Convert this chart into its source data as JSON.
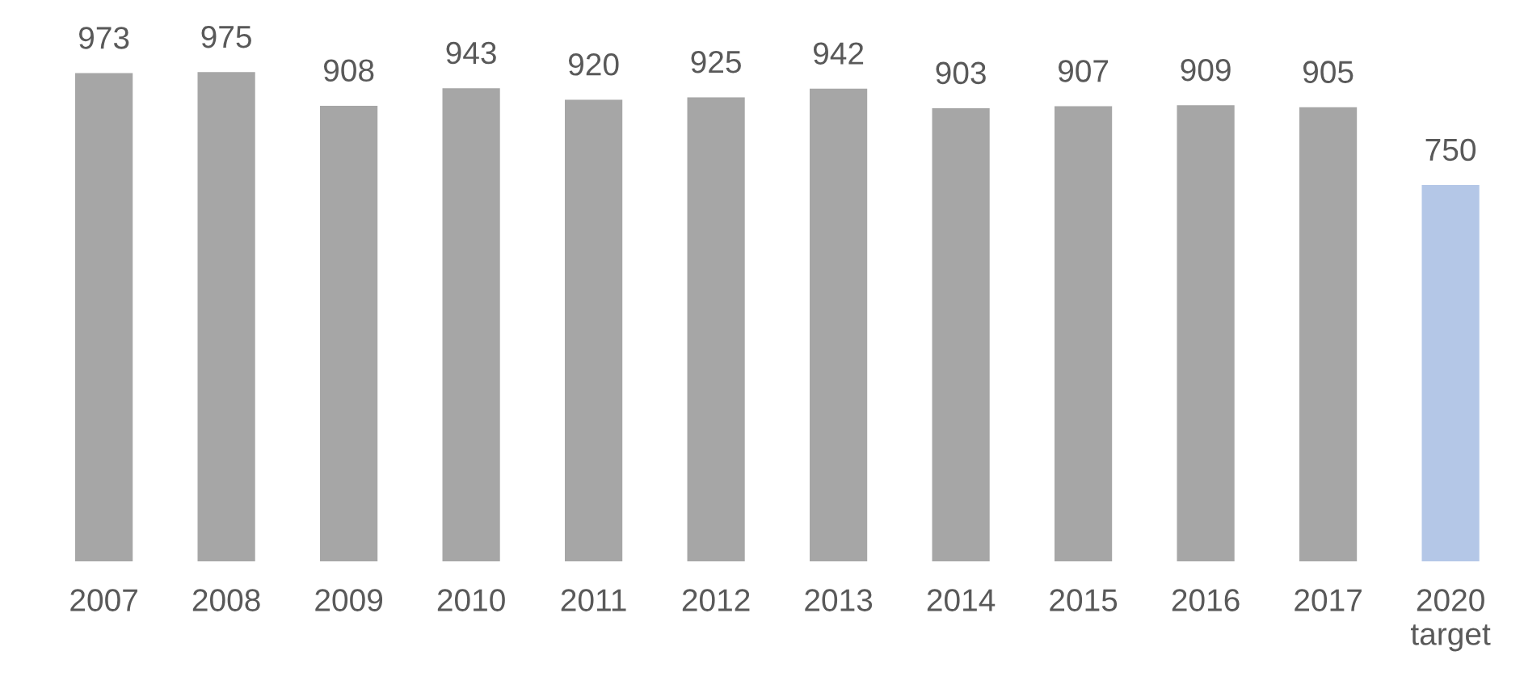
{
  "chart_data": {
    "type": "bar",
    "categories": [
      "2007",
      "2008",
      "2009",
      "2010",
      "2011",
      "2012",
      "2013",
      "2014",
      "2015",
      "2016",
      "2017",
      "2020\ntarget"
    ],
    "values": [
      973,
      975,
      908,
      943,
      920,
      925,
      942,
      903,
      907,
      909,
      905,
      750
    ],
    "colors": [
      "#a6a6a6",
      "#a6a6a6",
      "#a6a6a6",
      "#a6a6a6",
      "#a6a6a6",
      "#a6a6a6",
      "#a6a6a6",
      "#a6a6a6",
      "#a6a6a6",
      "#a6a6a6",
      "#a6a6a6",
      "#b4c7e7"
    ],
    "data_labels": true,
    "grid": false,
    "legend": false
  }
}
